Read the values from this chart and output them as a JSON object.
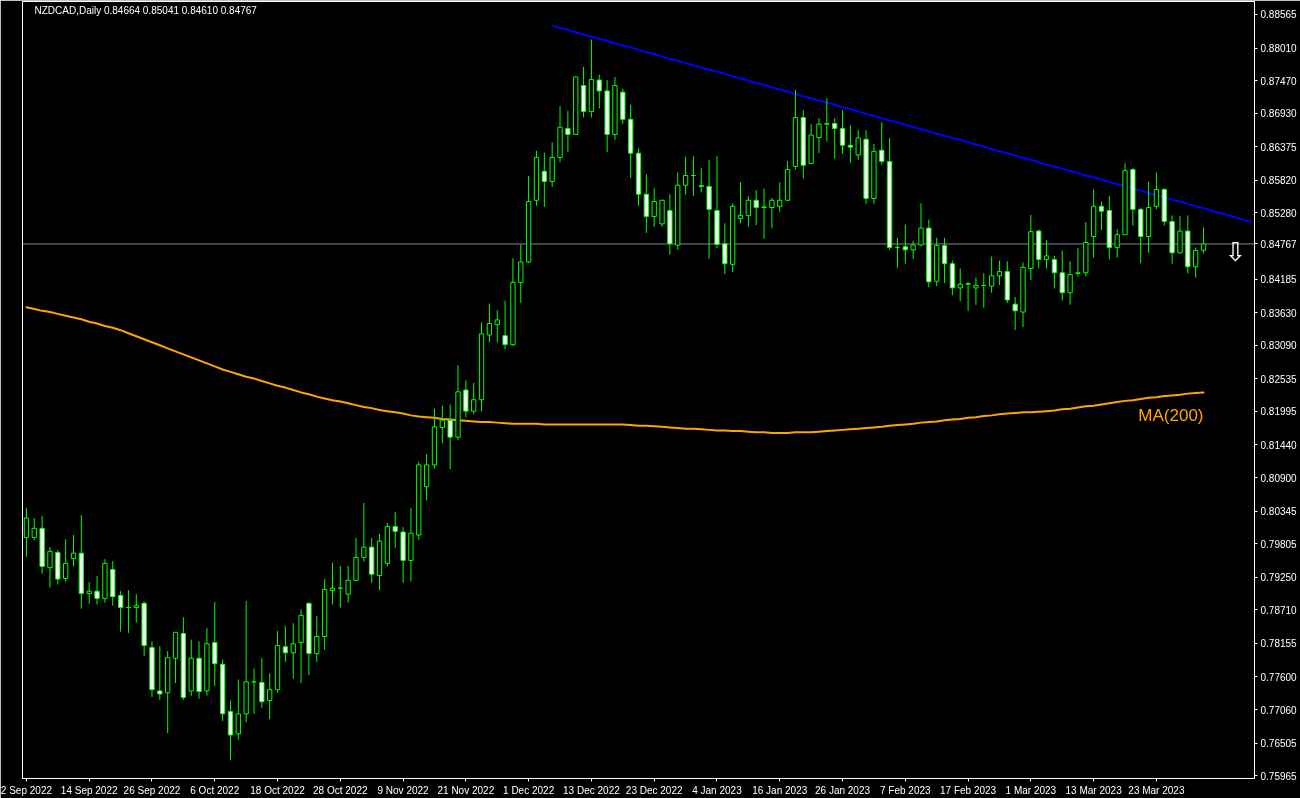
{
  "chart_data": {
    "type": "candlestick",
    "title": "NZDCAD,Daily 0.84664 0.85041 0.84610 0.84767",
    "annotations": [
      "⇩"
    ],
    "categories": [
      "2 Sep 2022",
      null,
      null,
      null,
      null,
      null,
      null,
      null,
      "14 Sep 2022",
      null,
      null,
      null,
      null,
      null,
      null,
      null,
      "26 Sep 2022",
      null,
      null,
      null,
      null,
      null,
      null,
      null,
      "6 Oct 2022",
      null,
      null,
      null,
      null,
      null,
      null,
      null,
      "18 Oct 2022",
      null,
      null,
      null,
      null,
      null,
      null,
      null,
      "28 Oct 2022",
      null,
      null,
      null,
      null,
      null,
      null,
      null,
      "9 Nov 2022",
      null,
      null,
      null,
      null,
      null,
      null,
      null,
      "21 Nov 2022",
      null,
      null,
      null,
      null,
      null,
      null,
      null,
      "1 Dec 2022",
      null,
      null,
      null,
      null,
      null,
      null,
      null,
      "13 Dec 2022",
      null,
      null,
      null,
      null,
      null,
      null,
      null,
      "23 Dec 2022",
      null,
      null,
      null,
      null,
      null,
      null,
      null,
      "4 Jan 2023",
      null,
      null,
      null,
      null,
      null,
      null,
      null,
      "16 Jan 2023",
      null,
      null,
      null,
      null,
      null,
      null,
      null,
      "26 Jan 2023",
      null,
      null,
      null,
      null,
      null,
      null,
      null,
      "7 Feb 2023",
      null,
      null,
      null,
      null,
      null,
      null,
      null,
      "17 Feb 2023",
      null,
      null,
      null,
      null,
      null,
      null,
      null,
      "1 Mar 2023",
      null,
      null,
      null,
      null,
      null,
      null,
      null,
      "13 Mar 2023",
      null,
      null,
      null,
      null,
      null,
      null,
      null,
      "23 Mar 2023",
      null,
      null,
      null,
      null,
      null,
      null,
      null,
      null,
      null,
      null,
      null,
      null
    ],
    "ohlc": [
      [
        0.7991,
        0.804,
        0.7959,
        0.8023
      ],
      [
        0.7991,
        0.8023,
        0.7986,
        0.8006
      ],
      [
        0.8006,
        0.8027,
        0.7931,
        0.7943
      ],
      [
        0.7941,
        0.7975,
        0.7908,
        0.7968
      ],
      [
        0.7966,
        0.797,
        0.7913,
        0.7922
      ],
      [
        0.7923,
        0.7988,
        0.7918,
        0.7948
      ],
      [
        0.7956,
        0.7995,
        0.7943,
        0.7965
      ],
      [
        0.7965,
        0.8028,
        0.7873,
        0.7898
      ],
      [
        0.7898,
        0.7917,
        0.7881,
        0.7902
      ],
      [
        0.7902,
        0.7927,
        0.788,
        0.789
      ],
      [
        0.789,
        0.7955,
        0.7883,
        0.7948
      ],
      [
        0.7938,
        0.7952,
        0.7878,
        0.7893
      ],
      [
        0.7895,
        0.7902,
        0.7835,
        0.7875
      ],
      [
        0.7875,
        0.7904,
        0.7833,
        0.7875
      ],
      [
        0.7875,
        0.7897,
        0.785,
        0.7878
      ],
      [
        0.7882,
        0.7885,
        0.7795,
        0.7812
      ],
      [
        0.7809,
        0.7819,
        0.7727,
        0.7739
      ],
      [
        0.7737,
        0.7811,
        0.7722,
        0.7732
      ],
      [
        0.7734,
        0.7803,
        0.7667,
        0.7792
      ],
      [
        0.7791,
        0.7834,
        0.775,
        0.7834
      ],
      [
        0.7832,
        0.7859,
        0.7722,
        0.7726
      ],
      [
        0.7737,
        0.7822,
        0.7729,
        0.7791
      ],
      [
        0.7791,
        0.7819,
        0.7724,
        0.7736
      ],
      [
        0.7737,
        0.7841,
        0.7729,
        0.7815
      ],
      [
        0.7817,
        0.7884,
        0.7745,
        0.7782
      ],
      [
        0.7781,
        0.7789,
        0.7687,
        0.7699
      ],
      [
        0.7703,
        0.7721,
        0.7622,
        0.7664
      ],
      [
        0.7666,
        0.7756,
        0.7656,
        0.7699
      ],
      [
        0.7699,
        0.7886,
        0.7685,
        0.7752
      ],
      [
        0.7752,
        0.7774,
        0.7699,
        0.7752
      ],
      [
        0.7751,
        0.7791,
        0.7709,
        0.7719
      ],
      [
        0.7721,
        0.7766,
        0.769,
        0.7739
      ],
      [
        0.7739,
        0.7836,
        0.7734,
        0.7812
      ],
      [
        0.781,
        0.7844,
        0.7785,
        0.78
      ],
      [
        0.78,
        0.7849,
        0.7757,
        0.7815
      ],
      [
        0.7817,
        0.7872,
        0.775,
        0.7862
      ],
      [
        0.7882,
        0.7883,
        0.7763,
        0.7799
      ],
      [
        0.7799,
        0.7861,
        0.7785,
        0.7827
      ],
      [
        0.7827,
        0.7922,
        0.7805,
        0.7905
      ],
      [
        0.7903,
        0.7949,
        0.788,
        0.7907
      ],
      [
        0.7907,
        0.7944,
        0.7875,
        0.7907
      ],
      [
        0.7897,
        0.7944,
        0.7883,
        0.792
      ],
      [
        0.792,
        0.799,
        0.7919,
        0.7958
      ],
      [
        0.7958,
        0.8048,
        0.7951,
        0.7975
      ],
      [
        0.7975,
        0.799,
        0.7916,
        0.793
      ],
      [
        0.7928,
        0.7997,
        0.7904,
        0.7985
      ],
      [
        0.7948,
        0.8015,
        0.7943,
        0.8009
      ],
      [
        0.8009,
        0.8033,
        0.7974,
        0.8001
      ],
      [
        0.8,
        0.8008,
        0.7916,
        0.7953
      ],
      [
        0.7953,
        0.804,
        0.7918,
        0.7998
      ],
      [
        0.7995,
        0.8116,
        0.7987,
        0.8111
      ],
      [
        0.8075,
        0.8129,
        0.8052,
        0.8111
      ],
      [
        0.8111,
        0.8204,
        0.8105,
        0.8174
      ],
      [
        0.8173,
        0.8209,
        0.8147,
        0.8185
      ],
      [
        0.8185,
        0.8211,
        0.8104,
        0.8157
      ],
      [
        0.8157,
        0.8276,
        0.8152,
        0.8232
      ],
      [
        0.8235,
        0.8251,
        0.819,
        0.82
      ],
      [
        0.82,
        0.8247,
        0.8195,
        0.8219
      ],
      [
        0.8219,
        0.8347,
        0.82,
        0.8328
      ],
      [
        0.8326,
        0.8378,
        0.8314,
        0.8345
      ],
      [
        0.8343,
        0.8367,
        0.8314,
        0.8351
      ],
      [
        0.8325,
        0.8383,
        0.8303,
        0.831
      ],
      [
        0.831,
        0.8453,
        0.8308,
        0.8413
      ],
      [
        0.8413,
        0.8476,
        0.8379,
        0.8447
      ],
      [
        0.8447,
        0.8589,
        0.8445,
        0.8547
      ],
      [
        0.8549,
        0.8631,
        0.854,
        0.862
      ],
      [
        0.8597,
        0.8628,
        0.8538,
        0.858
      ],
      [
        0.858,
        0.8645,
        0.8571,
        0.862
      ],
      [
        0.862,
        0.8705,
        0.8612,
        0.867
      ],
      [
        0.8668,
        0.8697,
        0.8629,
        0.8658
      ],
      [
        0.8658,
        0.8754,
        0.8658,
        0.8753
      ],
      [
        0.8739,
        0.877,
        0.8686,
        0.8696
      ],
      [
        0.8696,
        0.8815,
        0.8686,
        0.8749
      ],
      [
        0.8748,
        0.8757,
        0.8701,
        0.873
      ],
      [
        0.873,
        0.8748,
        0.8629,
        0.8658
      ],
      [
        0.8658,
        0.8753,
        0.8649,
        0.8739
      ],
      [
        0.8728,
        0.8733,
        0.8675,
        0.8683
      ],
      [
        0.8683,
        0.8707,
        0.8586,
        0.8627
      ],
      [
        0.8627,
        0.8635,
        0.854,
        0.8559
      ],
      [
        0.8559,
        0.8592,
        0.8495,
        0.8522
      ],
      [
        0.8522,
        0.8569,
        0.8505,
        0.8547
      ],
      [
        0.851,
        0.855,
        0.8505,
        0.8549
      ],
      [
        0.8532,
        0.8559,
        0.8459,
        0.8477
      ],
      [
        0.8475,
        0.8595,
        0.8467,
        0.8574
      ],
      [
        0.8574,
        0.8621,
        0.8558,
        0.859
      ],
      [
        0.859,
        0.8622,
        0.8556,
        0.859
      ],
      [
        0.8573,
        0.8603,
        0.8562,
        0.8572
      ],
      [
        0.8572,
        0.8616,
        0.8452,
        0.8534
      ],
      [
        0.8532,
        0.8622,
        0.847,
        0.8476
      ],
      [
        0.8477,
        0.8511,
        0.8427,
        0.8444
      ],
      [
        0.8443,
        0.8544,
        0.843,
        0.8539
      ],
      [
        0.8519,
        0.8579,
        0.8511,
        0.8524
      ],
      [
        0.8524,
        0.8556,
        0.8505,
        0.8549
      ],
      [
        0.8549,
        0.8566,
        0.8508,
        0.8537
      ],
      [
        0.8537,
        0.8568,
        0.8485,
        0.8538
      ],
      [
        0.8537,
        0.8553,
        0.8503,
        0.8549
      ],
      [
        0.8539,
        0.8579,
        0.853,
        0.8549
      ],
      [
        0.8549,
        0.8614,
        0.8549,
        0.86
      ],
      [
        0.8605,
        0.8732,
        0.86,
        0.8686
      ],
      [
        0.8686,
        0.8698,
        0.8585,
        0.8607
      ],
      [
        0.861,
        0.8675,
        0.861,
        0.8657
      ],
      [
        0.8653,
        0.8685,
        0.8627,
        0.8675
      ],
      [
        0.8675,
        0.8718,
        0.8646,
        0.8676
      ],
      [
        0.8676,
        0.8685,
        0.8618,
        0.8668
      ],
      [
        0.8668,
        0.8698,
        0.8626,
        0.864
      ],
      [
        0.864,
        0.8673,
        0.8611,
        0.8637
      ],
      [
        0.8624,
        0.8665,
        0.8616,
        0.8652
      ],
      [
        0.865,
        0.8665,
        0.8543,
        0.8552
      ],
      [
        0.8552,
        0.8642,
        0.8543,
        0.863
      ],
      [
        0.8632,
        0.8678,
        0.8608,
        0.8613
      ],
      [
        0.8613,
        0.8652,
        0.8467,
        0.8471
      ],
      [
        0.8471,
        0.8487,
        0.8437,
        0.8471
      ],
      [
        0.8472,
        0.8509,
        0.8444,
        0.8467
      ],
      [
        0.8467,
        0.8482,
        0.8452,
        0.8475
      ],
      [
        0.8475,
        0.8544,
        0.8473,
        0.8503
      ],
      [
        0.8503,
        0.8517,
        0.8405,
        0.8414
      ],
      [
        0.8415,
        0.8487,
        0.8407,
        0.8474
      ],
      [
        0.8474,
        0.8487,
        0.8412,
        0.8444
      ],
      [
        0.8444,
        0.8449,
        0.8392,
        0.8404
      ],
      [
        0.8404,
        0.8436,
        0.8382,
        0.841
      ],
      [
        0.841,
        0.8414,
        0.8366,
        0.8411
      ],
      [
        0.8404,
        0.8421,
        0.8376,
        0.8408
      ],
      [
        0.8408,
        0.8428,
        0.8371,
        0.8408
      ],
      [
        0.8407,
        0.8456,
        0.8396,
        0.8424
      ],
      [
        0.8424,
        0.8449,
        0.8409,
        0.8431
      ],
      [
        0.8431,
        0.8448,
        0.8379,
        0.8384
      ],
      [
        0.8377,
        0.8389,
        0.8334,
        0.8366
      ],
      [
        0.8364,
        0.8446,
        0.8339,
        0.8438
      ],
      [
        0.8436,
        0.8525,
        0.8417,
        0.8497
      ],
      [
        0.8498,
        0.8501,
        0.8436,
        0.8451
      ],
      [
        0.8451,
        0.8483,
        0.8436,
        0.8457
      ],
      [
        0.8451,
        0.8457,
        0.8403,
        0.8429
      ],
      [
        0.8429,
        0.8466,
        0.8383,
        0.8396
      ],
      [
        0.8396,
        0.8448,
        0.8376,
        0.8426
      ],
      [
        0.8428,
        0.847,
        0.8423,
        0.8429
      ],
      [
        0.8429,
        0.8513,
        0.8423,
        0.8479
      ],
      [
        0.8489,
        0.8567,
        0.8454,
        0.8539
      ],
      [
        0.8539,
        0.8547,
        0.85,
        0.8531
      ],
      [
        0.8532,
        0.8556,
        0.8451,
        0.8471
      ],
      [
        0.8471,
        0.8501,
        0.8454,
        0.8492
      ],
      [
        0.8492,
        0.861,
        0.8492,
        0.8598
      ],
      [
        0.86,
        0.8603,
        0.8507,
        0.8534
      ],
      [
        0.8534,
        0.8537,
        0.8445,
        0.8489
      ],
      [
        0.8489,
        0.858,
        0.8462,
        0.8537
      ],
      [
        0.8539,
        0.8595,
        0.8534,
        0.8567
      ],
      [
        0.8567,
        0.8569,
        0.8507,
        0.8514
      ],
      [
        0.8514,
        0.8524,
        0.8444,
        0.8462
      ],
      [
        0.8462,
        0.8523,
        0.8461,
        0.8498
      ],
      [
        0.8498,
        0.8524,
        0.8428,
        0.8439
      ],
      [
        0.8439,
        0.8471,
        0.8421,
        0.8466
      ],
      [
        0.84664,
        0.85041,
        0.8461,
        0.84767
      ],
      null,
      null,
      null,
      null,
      null,
      null
    ],
    "color": "#00ff00",
    "colors": [
      "#000000",
      "#000000",
      "#ffffff",
      "#000000",
      "#ffffff",
      "#000000",
      "#000000",
      "#ffffff",
      "#000000",
      "#ffffff",
      "#000000",
      "#ffffff",
      "#ffffff",
      "#00ff00",
      "#000000",
      "#ffffff",
      "#ffffff",
      "#ffffff",
      "#000000",
      "#000000",
      "#ffffff",
      "#000000",
      "#ffffff",
      "#000000",
      "#ffffff",
      "#ffffff",
      "#ffffff",
      "#000000",
      "#000000",
      "#00ff00",
      "#ffffff",
      "#000000",
      "#000000",
      "#ffffff",
      "#000000",
      "#000000",
      "#ffffff",
      "#000000",
      "#000000",
      "#000000",
      "#00ff00",
      "#000000",
      "#000000",
      "#000000",
      "#ffffff",
      "#000000",
      "#000000",
      "#ffffff",
      "#ffffff",
      "#000000",
      "#000000",
      "#000000",
      "#000000",
      "#000000",
      "#ffffff",
      "#000000",
      "#ffffff",
      "#000000",
      "#000000",
      "#000000",
      "#000000",
      "#ffffff",
      "#000000",
      "#000000",
      "#000000",
      "#000000",
      "#ffffff",
      "#000000",
      "#000000",
      "#ffffff",
      "#000000",
      "#ffffff",
      "#000000",
      "#ffffff",
      "#ffffff",
      "#000000",
      "#ffffff",
      "#ffffff",
      "#ffffff",
      "#ffffff",
      "#000000",
      "#000000",
      "#ffffff",
      "#000000",
      "#000000",
      "#00ff00",
      "#ffffff",
      "#ffffff",
      "#ffffff",
      "#ffffff",
      "#000000",
      "#000000",
      "#000000",
      "#ffffff",
      "#000000",
      "#000000",
      "#000000",
      "#000000",
      "#000000",
      "#ffffff",
      "#000000",
      "#000000",
      "#000000",
      "#ffffff",
      "#ffffff",
      "#ffffff",
      "#000000",
      "#ffffff",
      "#000000",
      "#ffffff",
      "#ffffff",
      "#00ff00",
      "#ffffff",
      "#000000",
      "#000000",
      "#ffffff",
      "#000000",
      "#ffffff",
      "#ffffff",
      "#000000",
      "#000000",
      "#000000",
      "#00ff00",
      "#000000",
      "#000000",
      "#ffffff",
      "#ffffff",
      "#000000",
      "#000000",
      "#ffffff",
      "#000000",
      "#ffffff",
      "#ffffff",
      "#000000",
      "#000000",
      "#000000",
      "#000000",
      "#ffffff",
      "#ffffff",
      "#000000",
      "#000000",
      "#ffffff",
      "#ffffff",
      "#000000",
      "#000000",
      "#ffffff",
      "#ffffff",
      "#000000",
      "#ffffff",
      "#000000",
      "#000000",
      null,
      null,
      null,
      null,
      null,
      null
    ],
    "series": [
      {
        "type": "line",
        "name": "MA(200)",
        "color": "#ffa500",
        "values": [
          0.8372,
          0.8369,
          0.8366,
          0.8364,
          0.8361,
          0.8358,
          0.8355,
          0.8352,
          0.8348,
          0.8345,
          0.8341,
          0.8338,
          0.8334,
          0.8329,
          0.8324,
          0.8319,
          0.8314,
          0.8309,
          0.8304,
          0.8299,
          0.8294,
          0.8289,
          0.8284,
          0.8279,
          0.8274,
          0.8269,
          0.8265,
          0.8261,
          0.8257,
          0.8254,
          0.825,
          0.8246,
          0.8242,
          0.8239,
          0.8235,
          0.8231,
          0.8228,
          0.8224,
          0.8221,
          0.8218,
          0.8216,
          0.8213,
          0.821,
          0.8207,
          0.8205,
          0.8202,
          0.82,
          0.8198,
          0.8196,
          0.8193,
          0.8191,
          0.819,
          0.8189,
          0.8187,
          0.8186,
          0.8185,
          0.8184,
          0.8183,
          0.8182,
          0.8182,
          0.8181,
          0.818,
          0.8179,
          0.8179,
          0.8179,
          0.8179,
          0.8178,
          0.8178,
          0.8178,
          0.8178,
          0.8178,
          0.8178,
          0.8178,
          0.8178,
          0.8178,
          0.8178,
          0.8178,
          0.8177,
          0.8176,
          0.8176,
          0.8175,
          0.8174,
          0.8173,
          0.8172,
          0.8171,
          0.8171,
          0.817,
          0.8169,
          0.8168,
          0.8168,
          0.8167,
          0.8167,
          0.8166,
          0.8165,
          0.8165,
          0.8164,
          0.8164,
          0.8164,
          0.8165,
          0.8165,
          0.8165,
          0.8166,
          0.8167,
          0.8168,
          0.8169,
          0.817,
          0.8171,
          0.8172,
          0.8173,
          0.8174,
          0.8176,
          0.8177,
          0.8178,
          0.8179,
          0.8181,
          0.8182,
          0.8183,
          0.8185,
          0.8186,
          0.8187,
          0.8189,
          0.819,
          0.8192,
          0.8193,
          0.8195,
          0.8196,
          0.8197,
          0.8198,
          0.8198,
          0.8199,
          0.82,
          0.8201,
          0.8203,
          0.8204,
          0.8206,
          0.8208,
          0.8209,
          0.8211,
          0.8213,
          0.8215,
          0.8217,
          0.8218,
          0.822,
          0.8222,
          0.8223,
          0.8225,
          0.8226,
          0.8227,
          0.8229,
          0.823,
          0.8231,
          null,
          null,
          null,
          null,
          null,
          null
        ]
      },
      {
        "type": "line",
        "color": "#0000ff",
        "values": [
          null,
          null,
          null,
          null,
          null,
          null,
          null,
          null,
          null,
          null,
          null,
          null,
          null,
          null,
          null,
          null,
          null,
          null,
          null,
          null,
          null,
          null,
          null,
          null,
          null,
          null,
          null,
          null,
          null,
          null,
          null,
          null,
          null,
          null,
          null,
          null,
          null,
          null,
          null,
          null,
          null,
          null,
          null,
          null,
          null,
          null,
          null,
          null,
          null,
          null,
          null,
          null,
          null,
          null,
          null,
          null,
          null,
          null,
          null,
          null,
          null,
          null,
          null,
          null,
          null,
          null,
          null,
          0.8838,
          0.8834,
          0.8831,
          0.8827,
          0.8823,
          0.882,
          0.8816,
          0.8813,
          0.8809,
          0.8805,
          0.8802,
          0.8798,
          0.8794,
          0.8791,
          0.8787,
          0.8783,
          0.878,
          0.8776,
          0.8772,
          0.8769,
          0.8765,
          0.8762,
          0.8758,
          0.8754,
          0.8751,
          0.8747,
          0.8743,
          0.874,
          0.8736,
          0.8732,
          0.8729,
          0.8725,
          0.8721,
          0.8718,
          0.8714,
          0.8711,
          0.8707,
          0.8703,
          0.87,
          0.8696,
          0.8692,
          0.8689,
          0.8685,
          0.8681,
          0.8678,
          0.8674,
          0.867,
          0.8667,
          0.8663,
          0.8659,
          0.8656,
          0.8652,
          0.8649,
          0.8645,
          0.8641,
          0.8638,
          0.8634,
          0.863,
          0.8627,
          0.8623,
          0.8619,
          0.8616,
          0.8612,
          0.8608,
          0.8605,
          0.8601,
          0.8598,
          0.8594,
          0.859,
          0.8587,
          0.8583,
          0.8579,
          0.8576,
          0.8572,
          0.8568,
          0.8565,
          0.8561,
          0.8557,
          0.8554,
          0.855,
          0.8547,
          0.8543,
          0.8539,
          0.8536,
          0.8532,
          0.8528,
          0.8525,
          0.8521,
          0.8517,
          0.8514
        ]
      }
    ],
    "ylim": [
      0.7592,
      0.8878
    ],
    "yticks": [
      0.88565,
      {
        "value": 0.8801,
        "label": "0.88010"
      },
      {
        "value": 0.8747,
        "label": "0.87470"
      },
      {
        "value": 0.8693,
        "label": "0.86930"
      },
      0.86375,
      {
        "value": 0.8582,
        "label": "0.85820"
      },
      {
        "value": 0.8528,
        "label": "0.85280"
      },
      0.84185,
      {
        "value": 0.8363,
        "label": "0.83630"
      },
      {
        "value": 0.8309,
        "label": "0.83090"
      },
      0.82535,
      0.81995,
      {
        "value": 0.8144,
        "label": "0.81440"
      },
      {
        "value": 0.809,
        "label": "0.80900"
      },
      0.80345,
      0.79805,
      {
        "value": 0.7925,
        "label": "0.79250"
      },
      {
        "value": 0.7871,
        "label": "0.78710"
      },
      0.78155,
      {
        "value": 0.776,
        "label": "0.77600"
      },
      {
        "value": 0.7706,
        "label": "0.77060"
      },
      0.76505,
      0.75965
    ],
    "ref_lines": [
      {
        "axis": "y",
        "value": 0.84767,
        "label": "0.84767",
        "color": "#778899"
      }
    ]
  }
}
